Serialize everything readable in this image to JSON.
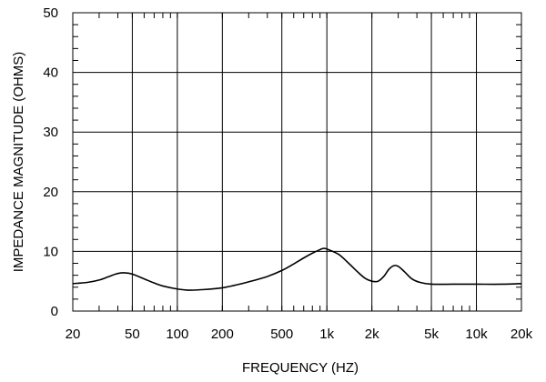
{
  "chart_data": {
    "type": "line",
    "title": "",
    "xlabel": "FREQUENCY  (HZ)",
    "ylabel": "IMPEDANCE MAGNITUDE  (OHMS)",
    "x_scale": "log",
    "xlim": [
      20,
      20000
    ],
    "ylim": [
      0,
      50
    ],
    "grid": true,
    "x_ticks": [
      {
        "value": 20,
        "label": "20"
      },
      {
        "value": 50,
        "label": "50"
      },
      {
        "value": 100,
        "label": "100"
      },
      {
        "value": 200,
        "label": "200"
      },
      {
        "value": 500,
        "label": "500"
      },
      {
        "value": 1000,
        "label": "1k"
      },
      {
        "value": 2000,
        "label": "2k"
      },
      {
        "value": 5000,
        "label": "5k"
      },
      {
        "value": 10000,
        "label": "10k"
      },
      {
        "value": 20000,
        "label": "20k"
      }
    ],
    "y_ticks": [
      {
        "value": 0,
        "label": "0"
      },
      {
        "value": 10,
        "label": "10"
      },
      {
        "value": 20,
        "label": "20"
      },
      {
        "value": 30,
        "label": "30"
      },
      {
        "value": 40,
        "label": "40"
      },
      {
        "value": 50,
        "label": "50"
      }
    ],
    "series": [
      {
        "color": "#000000",
        "points": [
          [
            20,
            4.6
          ],
          [
            25,
            4.8
          ],
          [
            30,
            5.2
          ],
          [
            35,
            5.8
          ],
          [
            40,
            6.3
          ],
          [
            45,
            6.4
          ],
          [
            50,
            6.2
          ],
          [
            60,
            5.4
          ],
          [
            70,
            4.7
          ],
          [
            80,
            4.2
          ],
          [
            100,
            3.7
          ],
          [
            120,
            3.5
          ],
          [
            150,
            3.6
          ],
          [
            200,
            3.9
          ],
          [
            250,
            4.4
          ],
          [
            300,
            4.9
          ],
          [
            400,
            5.8
          ],
          [
            500,
            6.8
          ],
          [
            600,
            7.9
          ],
          [
            700,
            8.9
          ],
          [
            800,
            9.7
          ],
          [
            900,
            10.3
          ],
          [
            950,
            10.5
          ],
          [
            1000,
            10.4
          ],
          [
            1200,
            9.5
          ],
          [
            1400,
            8.0
          ],
          [
            1600,
            6.6
          ],
          [
            1800,
            5.5
          ],
          [
            2000,
            5.0
          ],
          [
            2200,
            5.0
          ],
          [
            2400,
            5.8
          ],
          [
            2600,
            7.0
          ],
          [
            2800,
            7.6
          ],
          [
            3000,
            7.5
          ],
          [
            3300,
            6.6
          ],
          [
            3700,
            5.4
          ],
          [
            4200,
            4.8
          ],
          [
            5000,
            4.5
          ],
          [
            7000,
            4.5
          ],
          [
            10000,
            4.5
          ],
          [
            15000,
            4.5
          ],
          [
            20000,
            4.6
          ]
        ]
      }
    ]
  }
}
